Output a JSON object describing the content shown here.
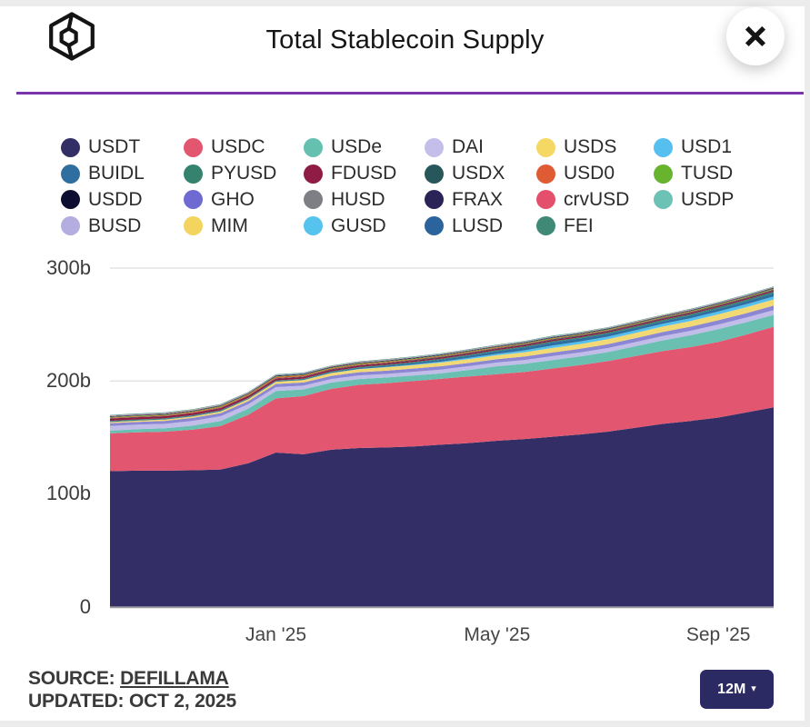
{
  "header": {
    "title": "Total Stablecoin Supply",
    "close_icon": "✕"
  },
  "legend": {
    "items": [
      {
        "label": "USDT",
        "color": "#332f66"
      },
      {
        "label": "USDC",
        "color": "#e2566f"
      },
      {
        "label": "USDe",
        "color": "#66c0b0"
      },
      {
        "label": "DAI",
        "color": "#c4bfea"
      },
      {
        "label": "USDS",
        "color": "#f5d863"
      },
      {
        "label": "USD1",
        "color": "#55bfef"
      },
      {
        "label": "BUIDL",
        "color": "#2f6f9f"
      },
      {
        "label": "PYUSD",
        "color": "#35836e"
      },
      {
        "label": "FDUSD",
        "color": "#8e1c44"
      },
      {
        "label": "USDX",
        "color": "#27575a"
      },
      {
        "label": "USD0",
        "color": "#df5b33"
      },
      {
        "label": "TUSD",
        "color": "#68b42e"
      },
      {
        "label": "USDD",
        "color": "#0d0d31"
      },
      {
        "label": "GHO",
        "color": "#6f6ad2"
      },
      {
        "label": "HUSD",
        "color": "#7e7e85"
      },
      {
        "label": "FRAX",
        "color": "#2a2357"
      },
      {
        "label": "crvUSD",
        "color": "#e4506c"
      },
      {
        "label": "USDP",
        "color": "#6cc2b4"
      },
      {
        "label": "BUSD",
        "color": "#b4addf"
      },
      {
        "label": "MIM",
        "color": "#f3d45f"
      },
      {
        "label": "GUSD",
        "color": "#56c3ee"
      },
      {
        "label": "LUSD",
        "color": "#2b639c"
      },
      {
        "label": "FEI",
        "color": "#3f8976"
      }
    ]
  },
  "chart_data": {
    "type": "area",
    "stacked": true,
    "title": "Total Stablecoin Supply",
    "y_unit": "billions USD",
    "ylim": [
      0,
      300
    ],
    "grid": "horizontal",
    "x_start": "Oct 2024",
    "x_end": "Oct 2025",
    "points_per_month": 2,
    "months_span": 12,
    "x_ticks": [
      {
        "label": "Jan '25",
        "month": 3
      },
      {
        "label": "May '25",
        "month": 7
      },
      {
        "label": "Sep '25",
        "month": 11
      }
    ],
    "y_ticks": [
      {
        "label": "0",
        "value": 0
      },
      {
        "label": "100b",
        "value": 100
      },
      {
        "label": "200b",
        "value": 200
      },
      {
        "label": "300b",
        "value": 300
      }
    ],
    "series": [
      {
        "name": "USDT",
        "color": "#332f66",
        "values": [
          120,
          120.5,
          120.5,
          120.8,
          121.5,
          127,
          136.5,
          135,
          139,
          140.5,
          141,
          142,
          143.5,
          145,
          147,
          148.5,
          150.5,
          152.5,
          155,
          158.5,
          162,
          164.5,
          167.5,
          172,
          176.5
        ]
      },
      {
        "name": "USDC",
        "color": "#e2566f",
        "values": [
          33.5,
          34,
          34.5,
          36,
          38.5,
          43,
          48,
          51.5,
          54,
          56,
          57,
          58,
          58.5,
          59,
          59,
          59.5,
          60.5,
          61.5,
          62.5,
          63.5,
          64.5,
          65.5,
          67,
          69,
          71.5
        ]
      },
      {
        "name": "USDe",
        "color": "#69c0b1",
        "values": [
          2.5,
          2.7,
          3,
          3.7,
          4.5,
          5.5,
          6.5,
          6,
          5.5,
          5.2,
          5,
          4.9,
          4.8,
          5.8,
          7,
          7.2,
          7.5,
          7.7,
          8,
          8.7,
          9.5,
          10.5,
          11.5,
          11,
          10.5
        ]
      },
      {
        "name": "DAI",
        "color": "#c2bce9",
        "values": [
          4,
          4,
          4,
          4.1,
          4.2,
          3.8,
          3.5,
          3.3,
          3.2,
          3.2,
          3.2,
          3.2,
          3.3,
          3.3,
          3.3,
          3.4,
          3.5,
          3.5,
          3.6,
          3.7,
          3.8,
          3.9,
          4,
          4.1,
          4.2
        ]
      },
      {
        "name": "GHO",
        "color": "#8c87d3",
        "values": [
          2.5,
          2.5,
          2.6,
          2.7,
          2.8,
          2.8,
          2.8,
          2.8,
          2.8,
          2.8,
          2.9,
          2.9,
          3,
          3,
          3,
          3.1,
          3.2,
          3.3,
          3.4,
          3.5,
          3.6,
          3.7,
          3.8,
          3.9,
          4
        ]
      },
      {
        "name": "USDS",
        "color": "#f3d973",
        "values": [
          1,
          1.1,
          1.2,
          1.3,
          1.5,
          1.7,
          2,
          2.2,
          2.5,
          2.7,
          3,
          3.1,
          3.2,
          3.3,
          3.5,
          3.7,
          4,
          4.2,
          4.5,
          4.6,
          4.8,
          5,
          5.2,
          5.3,
          5.5
        ]
      },
      {
        "name": "USD1",
        "color": "#55bfef",
        "values": [
          0,
          0,
          0,
          0,
          0,
          0,
          0,
          0.05,
          0.1,
          0.2,
          0.3,
          0.5,
          0.8,
          1,
          1.2,
          1.7,
          2.2,
          2.2,
          2.2,
          2.3,
          2.4,
          2.5,
          2.6,
          2.6,
          2.7
        ]
      },
      {
        "name": "BUIDL",
        "color": "#2f6f9f",
        "values": [
          0.5,
          0.5,
          0.5,
          0.55,
          0.6,
          0.6,
          0.6,
          0.7,
          0.8,
          1,
          1.2,
          1.5,
          1.8,
          2.1,
          2.4,
          2.6,
          2.8,
          2.65,
          2.5,
          2.4,
          2.3,
          2.4,
          2.5,
          2.7,
          2.9
        ]
      },
      {
        "name": "PYUSD",
        "color": "#35836e",
        "values": [
          0.6,
          0.57,
          0.55,
          0.52,
          0.5,
          0.5,
          0.5,
          0.55,
          0.6,
          0.65,
          0.7,
          0.75,
          0.8,
          0.85,
          0.9,
          0.95,
          1,
          1.05,
          1.1,
          1.15,
          1.2,
          1.25,
          1.3,
          1.32,
          1.35
        ]
      },
      {
        "name": "FDUSD",
        "color": "#8e1c44",
        "values": [
          2,
          1.95,
          1.9,
          1.85,
          1.8,
          1.7,
          1.6,
          1.5,
          1.4,
          1.35,
          1.3,
          1.27,
          1.25,
          1.22,
          1.2,
          1.2,
          1.2,
          1.17,
          1.15,
          1.12,
          1.1,
          1.1,
          1.1,
          1.1,
          1.1
        ]
      },
      {
        "name": "USDX",
        "color": "#27575a",
        "values": [
          0.3,
          0.3,
          0.3,
          0.3,
          0.35,
          0.35,
          0.4,
          0.4,
          0.45,
          0.45,
          0.5,
          0.5,
          0.55,
          0.55,
          0.55,
          0.6,
          0.6,
          0.6,
          0.6,
          0.6,
          0.6,
          0.6,
          0.6,
          0.6,
          0.6
        ]
      },
      {
        "name": "USD0",
        "color": "#df5b33",
        "values": [
          0.5,
          0.55,
          0.6,
          0.7,
          0.8,
          0.9,
          1,
          0.95,
          0.9,
          0.85,
          0.8,
          0.75,
          0.7,
          0.67,
          0.65,
          0.62,
          0.6,
          0.6,
          0.6,
          0.57,
          0.55,
          0.52,
          0.5,
          0.47,
          0.45
        ]
      },
      {
        "name": "TUSD",
        "color": "#68b42e",
        "values": [
          0.5,
          0.5,
          0.5,
          0.5,
          0.5,
          0.5,
          0.5,
          0.5,
          0.5,
          0.5,
          0.5,
          0.5,
          0.5,
          0.5,
          0.5,
          0.5,
          0.5,
          0.5,
          0.5,
          0.5,
          0.5,
          0.5,
          0.5,
          0.5,
          0.5
        ]
      },
      {
        "name": "USDD",
        "color": "#0d0d31",
        "values": [
          0.4,
          0.4,
          0.4,
          0.4,
          0.4,
          0.4,
          0.4,
          0.4,
          0.4,
          0.4,
          0.4,
          0.4,
          0.4,
          0.4,
          0.4,
          0.4,
          0.4,
          0.4,
          0.4,
          0.4,
          0.4,
          0.4,
          0.4,
          0.4,
          0.4
        ]
      },
      {
        "name": "HUSD",
        "color": "#7e7e85",
        "values": [
          0.1,
          0.1,
          0.1,
          0.1,
          0.1,
          0.1,
          0.1,
          0.1,
          0.1,
          0.1,
          0.1,
          0.1,
          0.1,
          0.1,
          0.1,
          0.1,
          0.1,
          0.1,
          0.1,
          0.1,
          0.1,
          0.1,
          0.1,
          0.1,
          0.1
        ]
      },
      {
        "name": "FRAX",
        "color": "#2a2357",
        "values": [
          0.35,
          0.35,
          0.35,
          0.35,
          0.35,
          0.35,
          0.35,
          0.35,
          0.35,
          0.35,
          0.35,
          0.35,
          0.35,
          0.35,
          0.35,
          0.35,
          0.35,
          0.35,
          0.35,
          0.35,
          0.35,
          0.35,
          0.35,
          0.35,
          0.35
        ]
      },
      {
        "name": "crvUSD",
        "color": "#e4506c",
        "values": [
          0.2,
          0.2,
          0.2,
          0.2,
          0.2,
          0.2,
          0.2,
          0.2,
          0.2,
          0.2,
          0.2,
          0.2,
          0.2,
          0.2,
          0.2,
          0.2,
          0.2,
          0.2,
          0.2,
          0.2,
          0.2,
          0.2,
          0.2,
          0.2,
          0.2
        ]
      },
      {
        "name": "USDP",
        "color": "#6cc2b4",
        "values": [
          0.15,
          0.15,
          0.15,
          0.15,
          0.15,
          0.15,
          0.15,
          0.15,
          0.15,
          0.15,
          0.15,
          0.15,
          0.15,
          0.15,
          0.15,
          0.15,
          0.15,
          0.15,
          0.15,
          0.15,
          0.15,
          0.15,
          0.15,
          0.15,
          0.15
        ]
      },
      {
        "name": "BUSD",
        "color": "#b4addf",
        "values": [
          0.1,
          0.1,
          0.1,
          0.1,
          0.1,
          0.1,
          0.1,
          0.1,
          0.1,
          0.1,
          0.1,
          0.1,
          0.1,
          0.1,
          0.1,
          0.1,
          0.1,
          0.1,
          0.1,
          0.1,
          0.1,
          0.1,
          0.1,
          0.1,
          0.1
        ]
      },
      {
        "name": "MIM",
        "color": "#f3d45f",
        "values": [
          0.1,
          0.1,
          0.1,
          0.1,
          0.1,
          0.1,
          0.1,
          0.1,
          0.1,
          0.1,
          0.1,
          0.1,
          0.1,
          0.1,
          0.1,
          0.1,
          0.1,
          0.1,
          0.1,
          0.1,
          0.1,
          0.1,
          0.1,
          0.1,
          0.1
        ]
      },
      {
        "name": "GUSD",
        "color": "#56c3ee",
        "values": [
          0.1,
          0.1,
          0.1,
          0.1,
          0.1,
          0.1,
          0.1,
          0.1,
          0.1,
          0.1,
          0.1,
          0.1,
          0.1,
          0.1,
          0.1,
          0.1,
          0.1,
          0.1,
          0.1,
          0.1,
          0.1,
          0.1,
          0.1,
          0.1,
          0.1
        ]
      },
      {
        "name": "LUSD",
        "color": "#2b639c",
        "values": [
          0.1,
          0.1,
          0.1,
          0.1,
          0.1,
          0.1,
          0.1,
          0.1,
          0.1,
          0.1,
          0.1,
          0.1,
          0.1,
          0.1,
          0.1,
          0.1,
          0.1,
          0.1,
          0.1,
          0.1,
          0.1,
          0.1,
          0.1,
          0.1,
          0.1
        ]
      },
      {
        "name": "FEI",
        "color": "#3f8976",
        "values": [
          0.35,
          0.35,
          0.35,
          0.35,
          0.35,
          0.35,
          0.35,
          0.35,
          0.35,
          0.35,
          0.35,
          0.35,
          0.35,
          0.35,
          0.35,
          0.35,
          0.35,
          0.35,
          0.35,
          0.35,
          0.35,
          0.35,
          0.35,
          0.35,
          0.35
        ]
      }
    ]
  },
  "footer": {
    "source_label": "SOURCE:",
    "source_link": "DEFILLAMA",
    "updated": "UPDATED: OCT 2, 2025"
  },
  "controls": {
    "range_label": "12M",
    "caret_icon": "▾"
  }
}
